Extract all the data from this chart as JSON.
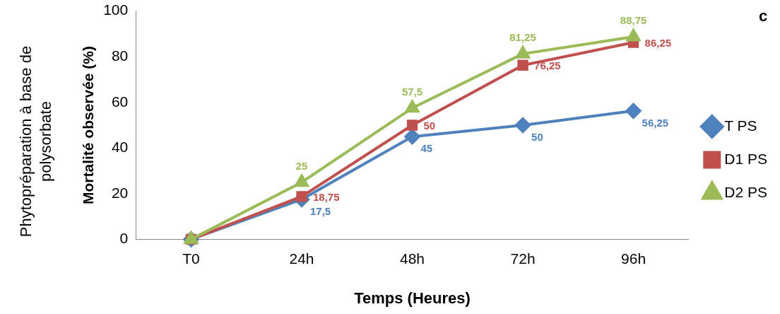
{
  "chart_data": {
    "type": "line",
    "xlabel": "Temps (Heures)",
    "ylabel": "Mortalité observée (%)",
    "categories": [
      "T0",
      "24h",
      "48h",
      "72h",
      "96h"
    ],
    "series": [
      {
        "name": "T PS",
        "color": "#4f81bd",
        "marker": "diamond",
        "values": [
          0,
          17.5,
          45,
          50,
          56.25
        ],
        "value_labels": [
          null,
          "17,5",
          "45",
          "50",
          "56,25"
        ]
      },
      {
        "name": "D1 PS",
        "color": "#c0504d",
        "marker": "square",
        "values": [
          0,
          18.75,
          50,
          76.25,
          86.25
        ],
        "value_labels": [
          null,
          "18,75",
          "50",
          "76,25",
          "86,25"
        ]
      },
      {
        "name": "D2 PS",
        "color": "#9bbb59",
        "marker": "triangle",
        "values": [
          0,
          25,
          57.5,
          81.25,
          88.75
        ],
        "value_labels": [
          null,
          "25",
          "57,5",
          "81,25",
          "88,75"
        ]
      }
    ],
    "ylim": [
      0,
      100
    ],
    "yticks": [
      0,
      20,
      40,
      60,
      80,
      100
    ],
    "grid": false,
    "legend": "right",
    "line_style": "solid",
    "annotations": [
      "Phytopréparation à base de polysorbate",
      "c"
    ]
  }
}
